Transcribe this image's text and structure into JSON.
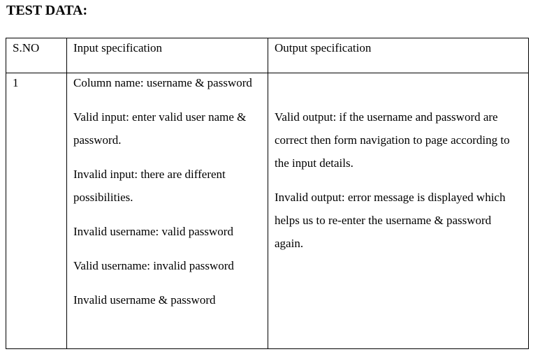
{
  "heading": "TEST DATA:",
  "table": {
    "headers": [
      "S.NO",
      "Input specification",
      "Output specification"
    ],
    "rows": [
      {
        "sno": "1",
        "input": [
          "Column name: username & password",
          "Valid input: enter valid user name & password.",
          "Invalid input: there are different possibilities.",
          "Invalid username: valid password",
          "Valid username: invalid password",
          "Invalid username & password"
        ],
        "output": [
          "Valid output: if the username and password are correct then form navigation to page according to the input details.",
          "Invalid output: error message is displayed which helps us to re-enter the username & password again."
        ]
      }
    ]
  }
}
